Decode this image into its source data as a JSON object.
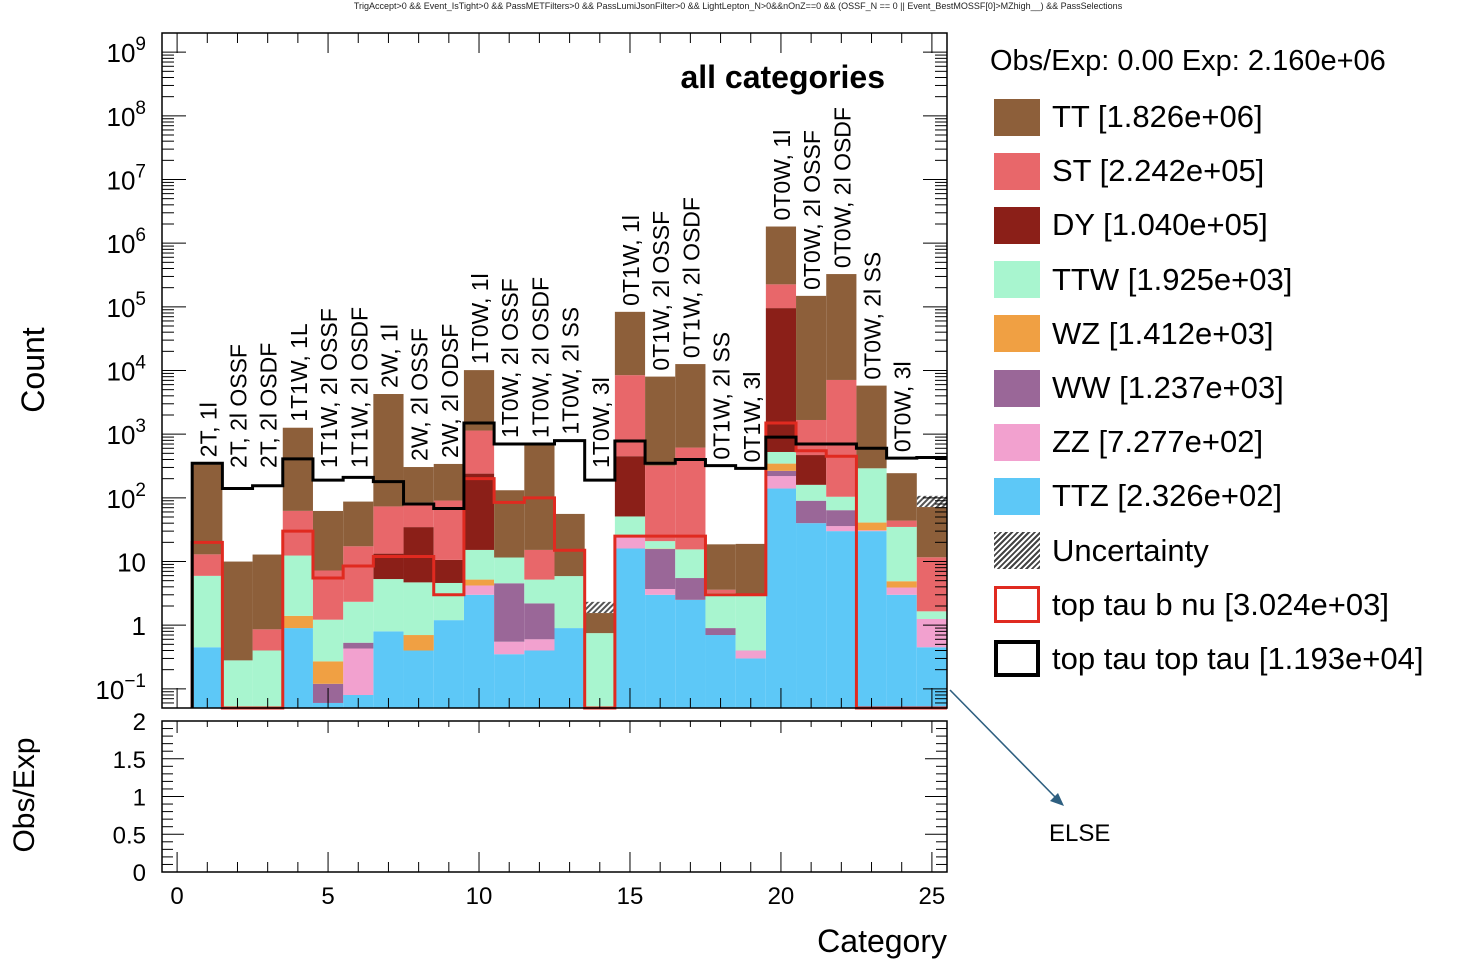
{
  "cut_text": "TrigAccept>0 && Event_IsTight>0 && PassMETFilters>0 && PassLumiJsonFilter>0 && LightLepton_N>0&&nOnZ==0 && (OSSF_N == 0 || Event_BestMOSSF[0]>MZhigh__) && PassSelections",
  "legend": {
    "header": "Obs/Exp: 0.00 Exp: 2.160e+06",
    "entries": [
      {
        "label": "TT [1.826e+06]",
        "color": "#8d5f3a",
        "kind": "fill",
        "icon": "tt-swatch"
      },
      {
        "label": "ST [2.242e+05]",
        "color": "#e8676a",
        "kind": "fill",
        "icon": "st-swatch"
      },
      {
        "label": "DY [1.040e+05]",
        "color": "#8b1f18",
        "kind": "fill",
        "icon": "dy-swatch"
      },
      {
        "label": "TTW [1.925e+03]",
        "color": "#a8f5cf",
        "kind": "fill",
        "icon": "ttw-swatch"
      },
      {
        "label": "WZ [1.412e+03]",
        "color": "#f0a043",
        "kind": "fill",
        "icon": "wz-swatch"
      },
      {
        "label": "WW [1.237e+03]",
        "color": "#9a6798",
        "kind": "fill",
        "icon": "ww-swatch"
      },
      {
        "label": "ZZ [7.277e+02]",
        "color": "#f2a1cf",
        "kind": "fill",
        "icon": "zz-swatch"
      },
      {
        "label": "TTZ [2.326e+02]",
        "color": "#5dc8f7",
        "kind": "fill",
        "icon": "ttz-swatch"
      },
      {
        "label": "Uncertainty",
        "color": "#444444",
        "kind": "hatch",
        "icon": "uncertainty-swatch"
      },
      {
        "label": "top tau b nu [3.024e+03]",
        "color": "#e02a20",
        "kind": "line",
        "icon": "top-tau-b-nu-swatch"
      },
      {
        "label": "top tau top tau [1.193e+04]",
        "color": "#000000",
        "kind": "line",
        "icon": "top-tau-top-tau-swatch"
      }
    ]
  },
  "annotation": "ELSE",
  "chart_data": {
    "type": "bar",
    "stacked": true,
    "title": "all categories",
    "xlabel": "Category",
    "ylabel": "Count",
    "ratio_ylabel": "Obs/Exp",
    "xlim": [
      -0.5,
      25.5
    ],
    "ylim": [
      0.05,
      2000000000
    ],
    "ylog": true,
    "ratio_ylim": [
      0,
      2
    ],
    "x_ticks": [
      0,
      5,
      10,
      15,
      20,
      25
    ],
    "y_ticks": [
      {
        "v": 0.1,
        "base": "10",
        "exp": "−1"
      },
      {
        "v": 1,
        "base": "1",
        "exp": ""
      },
      {
        "v": 10,
        "base": "10",
        "exp": ""
      },
      {
        "v": 100,
        "base": "10",
        "exp": "2"
      },
      {
        "v": 1000,
        "base": "10",
        "exp": "3"
      },
      {
        "v": 10000,
        "base": "10",
        "exp": "4"
      },
      {
        "v": 100000,
        "base": "10",
        "exp": "5"
      },
      {
        "v": 1000000,
        "base": "10",
        "exp": "6"
      },
      {
        "v": 10000000,
        "base": "10",
        "exp": "7"
      },
      {
        "v": 100000000,
        "base": "10",
        "exp": "8"
      },
      {
        "v": 1000000000,
        "base": "10",
        "exp": "9"
      }
    ],
    "ratio_ticks": [
      {
        "v": 0,
        "label": "0"
      },
      {
        "v": 0.5,
        "label": "0.5"
      },
      {
        "v": 1,
        "label": "1"
      },
      {
        "v": 1.5,
        "label": "1.5"
      },
      {
        "v": 2,
        "label": "2"
      }
    ],
    "categories": [
      "2T, 1l",
      "2T, 2l OSSF",
      "2T, 2l OSDF",
      "1T1W, 1L",
      "1T1W, 2l OSSF",
      "1T1W, 2l OSDF",
      "2W, 1l",
      "2W, 2l OSSF",
      "2W, 2l ODSF",
      "1T0W, 1l",
      "1T0W, 2l OSSF",
      "1T0W, 2l OSDF",
      "1T0W, 2l SS",
      "1T0W, 3l",
      "0T1W, 1l",
      "0T1W, 2l OSSF",
      "0T1W, 2l OSDF",
      "0T1W, 2l SS",
      "0T1W, 3l",
      "0T0W, 1l",
      "0T0W, 2l OSSF",
      "0T0W, 2l OSDF",
      "0T0W, 2l SS",
      "0T0W, 3l"
    ],
    "x": [
      1,
      2,
      3,
      4,
      5,
      6,
      7,
      8,
      9,
      10,
      11,
      12,
      13,
      14,
      15,
      16,
      17,
      18,
      19,
      20,
      21,
      22,
      23,
      24,
      25
    ],
    "series": [
      {
        "name": "TTZ",
        "color": "#5dc8f7",
        "values": [
          0.45,
          0,
          0,
          0.9,
          0.06,
          0.08,
          0.8,
          0.4,
          1.2,
          3,
          0.35,
          0.4,
          0.9,
          0,
          16,
          3,
          2.5,
          0.7,
          0.3,
          140,
          40,
          30,
          30,
          3,
          0.45
        ]
      },
      {
        "name": "ZZ",
        "color": "#f2a1cf",
        "values": [
          0,
          0,
          0,
          0,
          0,
          0.35,
          0,
          0,
          0,
          1.2,
          0.2,
          0.2,
          0,
          0,
          10,
          0.7,
          0,
          0,
          0.1,
          80,
          0.02,
          6,
          0.9,
          0.9,
          0.8
        ]
      },
      {
        "name": "WW",
        "color": "#9a6798",
        "values": [
          0,
          0,
          0,
          0,
          0.06,
          0.1,
          0,
          0,
          0,
          0,
          4,
          1.6,
          0,
          0,
          0,
          12,
          3,
          0.2,
          0,
          45,
          50,
          28,
          0,
          0,
          0
        ]
      },
      {
        "name": "WZ",
        "color": "#f0a043",
        "values": [
          0,
          0,
          0,
          0.5,
          0.15,
          0,
          0,
          0.3,
          0,
          1,
          0,
          0,
          0,
          0,
          0,
          0.2,
          0,
          0,
          0,
          80,
          0,
          0,
          10,
          1,
          0
        ]
      },
      {
        "name": "TTW",
        "color": "#a8f5cf",
        "values": [
          5.5,
          0.28,
          0.4,
          11,
          0.95,
          1.8,
          4.5,
          4,
          3.4,
          10,
          7,
          3,
          5,
          0.75,
          25,
          5,
          10,
          2.3,
          2.5,
          180,
          70,
          40,
          250,
          30,
          0.4
        ]
      },
      {
        "name": "DY",
        "color": "#8b1f18",
        "values": [
          0,
          0,
          0,
          0,
          0,
          0,
          8,
          30,
          6,
          225,
          0,
          0,
          0,
          0,
          400,
          0,
          0,
          0,
          0,
          95000,
          310,
          0,
          0,
          0,
          0
        ]
      },
      {
        "name": "ST",
        "color": "#e8676a",
        "values": [
          7,
          0,
          0.46,
          50,
          6,
          15,
          60,
          50,
          80,
          900,
          0,
          10,
          0,
          0,
          8000,
          300,
          600,
          0.4,
          0,
          130000,
          1200,
          7000,
          0,
          9,
          10
        ]
      },
      {
        "name": "TT",
        "color": "#8d5f3a",
        "values": [
          320,
          9.7,
          12,
          1200,
          55,
          70,
          4200,
          220,
          250,
          9000,
          120,
          660,
          50,
          0.8,
          75000,
          7700,
          12000,
          15,
          16,
          1600000,
          147000,
          320000,
          5500,
          200,
          60
        ]
      }
    ],
    "top_tau_b_nu": {
      "name": "top tau b nu",
      "color": "#e02a20",
      "values": [
        20,
        0,
        0,
        30,
        5.5,
        8.5,
        12,
        12,
        3,
        200,
        85,
        100,
        15,
        0,
        25,
        25,
        25,
        3,
        3,
        1500,
        550,
        450,
        0.02,
        0,
        0
      ]
    },
    "top_tau_top_tau": {
      "name": "top tau top tau",
      "color": "#000000",
      "values": [
        350,
        140,
        155,
        410,
        190,
        210,
        180,
        80,
        68,
        1500,
        700,
        700,
        790,
        190,
        780,
        350,
        400,
        320,
        290,
        900,
        700,
        700,
        600,
        420,
        430
      ]
    }
  }
}
